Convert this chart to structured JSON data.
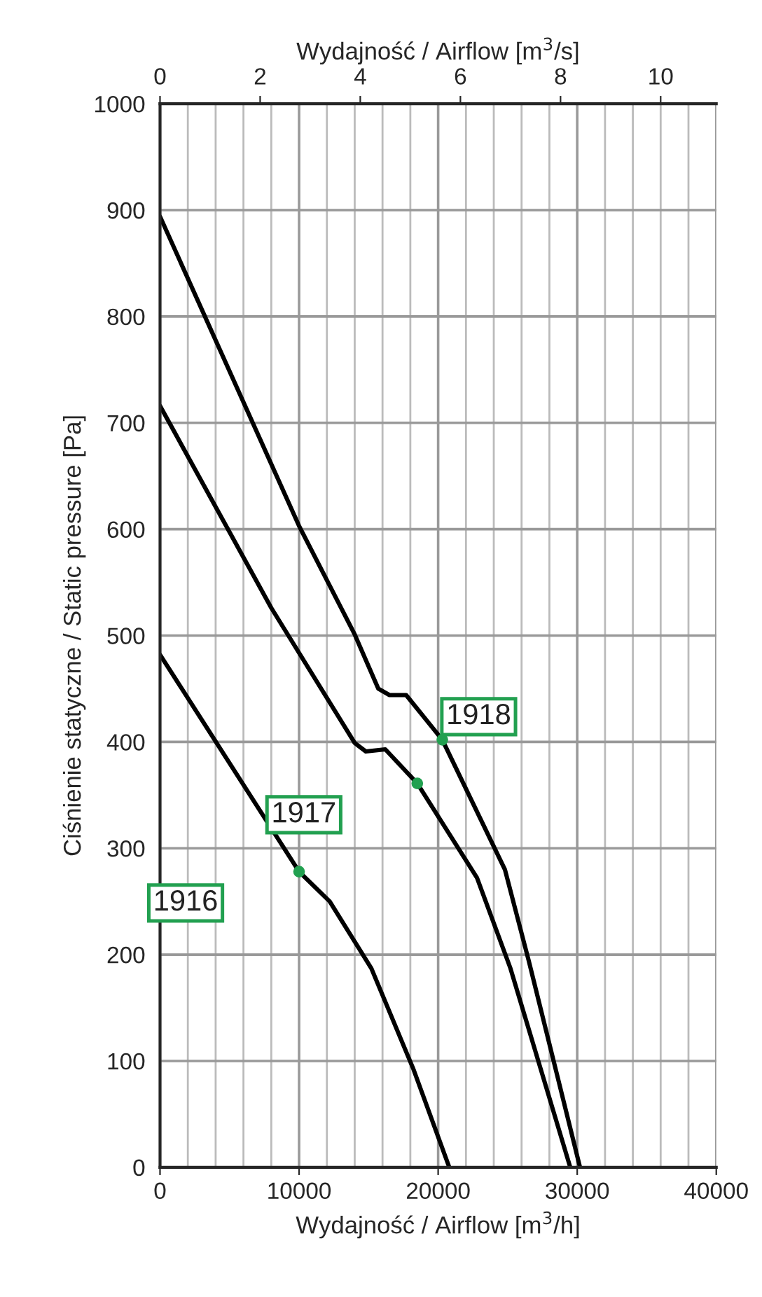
{
  "chart_data": {
    "type": "line",
    "xlabel": "Wydajność / Airflow [m$^{3}$/h]",
    "ylabel": "Ciśnienie statyczne / Static pressure [Pa]",
    "x2label": "Wydajność / Airflow [m$^{3}$/s]",
    "xlim": [
      0,
      40000
    ],
    "xticks": [
      0,
      10000,
      20000,
      30000,
      40000
    ],
    "x2lim": [
      0,
      11.111
    ],
    "x2ticks": [
      0,
      2,
      4,
      6,
      8,
      10
    ],
    "ylim": [
      0,
      1000
    ],
    "yticks": [
      0,
      100,
      200,
      300,
      400,
      500,
      600,
      700,
      800,
      900,
      1000
    ],
    "grid": true,
    "marker": "none",
    "line_style": "solid",
    "series": [
      {
        "color": "#000000",
        "x": [
          0,
          10000,
          14000,
          15700,
          16500,
          17700,
          20300,
          24800,
          26500,
          30200
        ],
        "values": [
          894,
          603,
          501,
          450,
          444,
          444,
          402,
          280,
          195,
          0
        ]
      },
      {
        "color": "#000000",
        "x": [
          0,
          8000,
          14000,
          14800,
          16200,
          18500,
          22800,
          25200,
          29500
        ],
        "values": [
          716,
          526,
          399,
          391,
          393,
          361,
          272,
          187,
          0
        ]
      },
      {
        "color": "#000000",
        "x": [
          0,
          10000,
          12200,
          15200,
          18200,
          20800
        ],
        "values": [
          482,
          278,
          250,
          187,
          93,
          0
        ]
      }
    ],
    "annotations": [
      {
        "text": "1918",
        "x": 20300,
        "y": 402
      },
      {
        "text": "1917",
        "x": 18500,
        "y": 361
      },
      {
        "text": "1916",
        "x": 10000,
        "y": 278
      }
    ]
  }
}
